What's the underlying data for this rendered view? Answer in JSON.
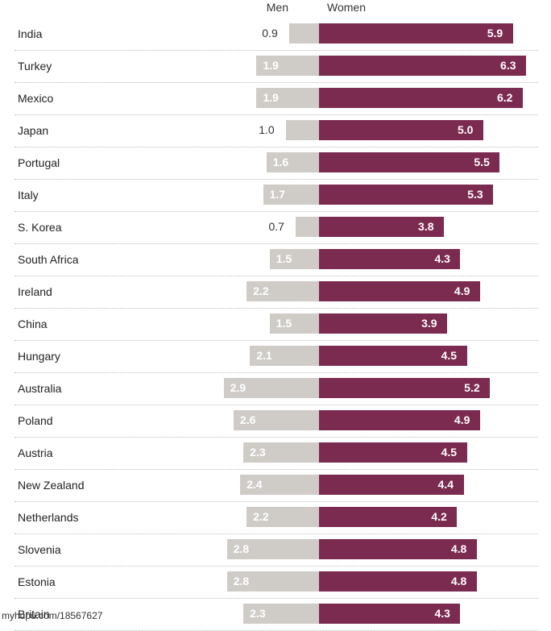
{
  "chart_data": {
    "type": "bar",
    "orientation": "horizontal-diverging",
    "categories": [
      "India",
      "Turkey",
      "Mexico",
      "Japan",
      "Portugal",
      "Italy",
      "S. Korea",
      "South Africa",
      "Ireland",
      "China",
      "Hungary",
      "Australia",
      "Poland",
      "Austria",
      "New Zealand",
      "Netherlands",
      "Slovenia",
      "Estonia",
      "Britain"
    ],
    "series": [
      {
        "name": "Men",
        "color": "#cfccc8",
        "values": [
          0.9,
          1.9,
          1.9,
          1.0,
          1.6,
          1.7,
          0.7,
          1.5,
          2.2,
          1.5,
          2.1,
          2.9,
          2.6,
          2.3,
          2.4,
          2.2,
          2.8,
          2.8,
          2.3
        ]
      },
      {
        "name": "Women",
        "color": "#7b2a50",
        "values": [
          5.9,
          6.3,
          6.2,
          5.0,
          5.5,
          5.3,
          3.8,
          4.3,
          4.9,
          3.9,
          4.5,
          5.2,
          4.9,
          4.5,
          4.4,
          4.2,
          4.8,
          4.8,
          4.3
        ]
      }
    ],
    "value_labels": {
      "Men": [
        "0.9",
        "1.9",
        "1.9",
        "1.0",
        "1.6",
        "1.7",
        "0.7",
        "1.5",
        "2.2",
        "1.5",
        "2.1",
        "2.9",
        "2.6",
        "2.3",
        "2.4",
        "2.2",
        "2.8",
        "2.8",
        "2.3"
      ],
      "Women": [
        "5.9",
        "6.3",
        "6.2",
        "5.0",
        "5.5",
        "5.3",
        "3.8",
        "4.3",
        "4.9",
        "3.9",
        "4.5",
        "5.2",
        "4.9",
        "4.5",
        "4.4",
        "4.2",
        "4.8",
        "4.8",
        "4.3"
      ]
    },
    "legend": "top",
    "grid": false
  },
  "watermark": "myhupu.com/18567627"
}
